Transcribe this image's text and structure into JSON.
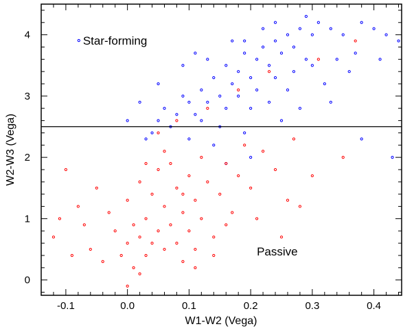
{
  "chart_data": {
    "type": "scatter",
    "title": "",
    "xlabel": "W1-W2 (Vega)",
    "ylabel": "W2-W3 (Vega)",
    "xlim": [
      -0.14,
      0.445
    ],
    "ylim": [
      -0.25,
      4.5
    ],
    "x_ticks": [
      -0.1,
      0.0,
      0.1,
      0.2,
      0.3,
      0.4
    ],
    "x_tick_labels": [
      "-0.1",
      "0.0",
      "0.1",
      "0.2",
      "0.3",
      "0.4"
    ],
    "y_ticks": [
      0,
      1,
      2,
      3,
      4
    ],
    "y_tick_labels": [
      "0",
      "1",
      "2",
      "3",
      "4"
    ],
    "grid": false,
    "legend": "none",
    "reference_lines": [
      {
        "orientation": "horizontal",
        "y": 2.5,
        "color": "#000000"
      }
    ],
    "annotations": [
      {
        "text": "Star-forming",
        "x": -0.07,
        "y": 3.85,
        "marker_color": "#0000ff"
      },
      {
        "text": "Passive",
        "x": 0.21,
        "y": 0.4
      }
    ],
    "marker": "open-circle",
    "series": [
      {
        "color": "#0000ff",
        "points": [
          [
            0.08,
            2.7
          ],
          [
            0.1,
            2.9
          ],
          [
            0.12,
            3.1
          ],
          [
            0.14,
            3.3
          ],
          [
            0.15,
            3.0
          ],
          [
            0.16,
            3.5
          ],
          [
            0.17,
            3.2
          ],
          [
            0.18,
            3.4
          ],
          [
            0.19,
            3.7
          ],
          [
            0.2,
            3.3
          ],
          [
            0.21,
            3.6
          ],
          [
            0.22,
            3.8
          ],
          [
            0.23,
            3.5
          ],
          [
            0.24,
            3.9
          ],
          [
            0.25,
            3.7
          ],
          [
            0.26,
            4.0
          ],
          [
            0.27,
            3.8
          ],
          [
            0.28,
            4.1
          ],
          [
            0.29,
            3.6
          ],
          [
            0.3,
            4.0
          ],
          [
            0.31,
            4.2
          ],
          [
            0.33,
            4.1
          ],
          [
            0.35,
            4.0
          ],
          [
            0.38,
            4.2
          ],
          [
            0.4,
            4.1
          ],
          [
            0.42,
            4.0
          ],
          [
            0.44,
            3.9
          ],
          [
            0.05,
            2.6
          ],
          [
            0.06,
            2.8
          ],
          [
            0.09,
            3.0
          ],
          [
            0.11,
            2.7
          ],
          [
            0.13,
            2.9
          ],
          [
            0.07,
            2.5
          ],
          [
            0.04,
            2.4
          ],
          [
            0.03,
            2.3
          ],
          [
            0.12,
            2.6
          ],
          [
            0.16,
            2.8
          ],
          [
            0.18,
            3.0
          ],
          [
            0.21,
            3.1
          ],
          [
            0.24,
            3.3
          ],
          [
            0.27,
            3.4
          ],
          [
            0.3,
            3.5
          ],
          [
            0.34,
            3.6
          ],
          [
            0.37,
            3.7
          ],
          [
            0.2,
            2.8
          ],
          [
            0.23,
            2.9
          ],
          [
            0.26,
            3.1
          ],
          [
            0.15,
            2.5
          ],
          [
            0.1,
            2.3
          ],
          [
            0.14,
            2.2
          ],
          [
            0.19,
            2.4
          ],
          [
            0.25,
            2.6
          ],
          [
            0.32,
            3.2
          ],
          [
            0.36,
            3.4
          ],
          [
            0.41,
            3.6
          ],
          [
            0.43,
            2.0
          ],
          [
            0.38,
            2.3
          ],
          [
            0.09,
            3.5
          ],
          [
            0.11,
            3.7
          ],
          [
            0.17,
            3.9
          ],
          [
            0.22,
            4.1
          ],
          [
            0.05,
            3.2
          ],
          [
            0.02,
            2.9
          ],
          [
            0.0,
            2.6
          ],
          [
            0.16,
            1.9
          ],
          [
            0.2,
            2.0
          ],
          [
            0.28,
            2.8
          ],
          [
            0.33,
            2.9
          ],
          [
            0.13,
            3.6
          ],
          [
            0.19,
            3.9
          ],
          [
            0.24,
            4.2
          ],
          [
            0.29,
            4.3
          ]
        ]
      },
      {
        "color": "#ff0000",
        "points": [
          [
            -0.12,
            0.7
          ],
          [
            -0.1,
            1.8
          ],
          [
            -0.08,
            1.2
          ],
          [
            -0.07,
            0.9
          ],
          [
            -0.06,
            0.5
          ],
          [
            -0.05,
            1.5
          ],
          [
            -0.04,
            0.3
          ],
          [
            -0.03,
            1.1
          ],
          [
            -0.02,
            0.8
          ],
          [
            -0.01,
            0.4
          ],
          [
            0.0,
            0.6
          ],
          [
            0.0,
            1.3
          ],
          [
            0.01,
            0.9
          ],
          [
            0.01,
            0.2
          ],
          [
            0.02,
            1.6
          ],
          [
            0.02,
            0.7
          ],
          [
            0.03,
            1.0
          ],
          [
            0.03,
            0.4
          ],
          [
            0.04,
            1.4
          ],
          [
            0.04,
            0.6
          ],
          [
            0.05,
            1.8
          ],
          [
            0.05,
            0.8
          ],
          [
            0.06,
            1.2
          ],
          [
            0.06,
            0.5
          ],
          [
            0.07,
            1.9
          ],
          [
            0.07,
            0.9
          ],
          [
            0.08,
            1.5
          ],
          [
            0.08,
            0.6
          ],
          [
            0.09,
            1.1
          ],
          [
            0.09,
            0.3
          ],
          [
            0.1,
            1.7
          ],
          [
            0.1,
            0.8
          ],
          [
            0.11,
            1.3
          ],
          [
            0.11,
            0.5
          ],
          [
            0.12,
            2.0
          ],
          [
            0.12,
            1.0
          ],
          [
            0.13,
            1.6
          ],
          [
            0.14,
            0.7
          ],
          [
            0.15,
            1.4
          ],
          [
            0.16,
            1.9
          ],
          [
            0.17,
            1.1
          ],
          [
            0.18,
            1.7
          ],
          [
            0.19,
            2.2
          ],
          [
            0.2,
            1.5
          ],
          [
            0.22,
            2.1
          ],
          [
            0.24,
            1.8
          ],
          [
            0.27,
            2.3
          ],
          [
            0.3,
            1.7
          ],
          [
            0.35,
            2.0
          ],
          [
            0.28,
            1.2
          ],
          [
            0.25,
            0.7
          ],
          [
            -0.09,
            0.4
          ],
          [
            -0.11,
            1.0
          ],
          [
            0.0,
            -0.1
          ],
          [
            0.02,
            0.1
          ],
          [
            0.05,
            2.4
          ],
          [
            0.08,
            2.6
          ],
          [
            0.13,
            2.8
          ],
          [
            0.18,
            3.1
          ],
          [
            0.23,
            3.4
          ],
          [
            0.31,
            3.6
          ],
          [
            0.37,
            3.9
          ],
          [
            0.03,
            1.9
          ],
          [
            0.06,
            2.1
          ],
          [
            0.09,
            1.4
          ],
          [
            0.11,
            0.2
          ],
          [
            0.14,
            0.4
          ],
          [
            0.16,
            0.9
          ],
          [
            0.21,
            1.0
          ],
          [
            0.26,
            1.3
          ]
        ]
      }
    ]
  }
}
